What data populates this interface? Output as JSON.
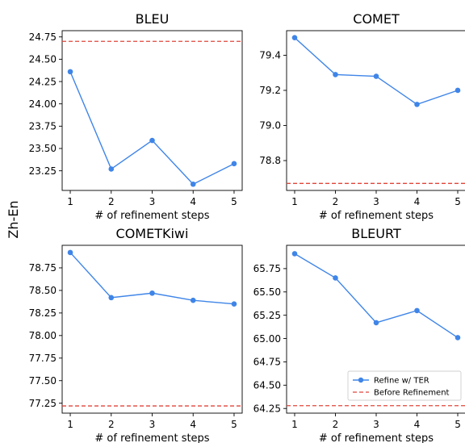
{
  "figure": {
    "row_label": "Zh-En"
  },
  "colors": {
    "series": "#3f85e8",
    "baseline": "#e0453a"
  },
  "legend": {
    "panel_index": 3,
    "placement": "lower-right",
    "entries": [
      "Refine w/ TER",
      "Before Refinement"
    ]
  },
  "chart_data": [
    {
      "type": "line",
      "title": "BLEU",
      "xlabel": "# of refinement steps",
      "x": [
        1,
        2,
        3,
        4,
        5
      ],
      "xticks": [
        "1",
        "2",
        "3",
        "4",
        "5"
      ],
      "series": [
        {
          "name": "Refine w/ TER",
          "values": [
            24.36,
            23.27,
            23.59,
            23.1,
            23.33
          ]
        }
      ],
      "baseline": {
        "name": "Before Refinement",
        "value": 24.7
      },
      "ylim": [
        23.03,
        24.82
      ],
      "yticks": [
        23.25,
        23.5,
        23.75,
        24.0,
        24.25,
        24.5,
        24.75
      ],
      "ytick_labels": [
        "23.25",
        "23.50",
        "23.75",
        "24.00",
        "24.25",
        "24.50",
        "24.75"
      ]
    },
    {
      "type": "line",
      "title": "COMET",
      "xlabel": "# of refinement steps",
      "x": [
        1,
        2,
        3,
        4,
        5
      ],
      "xticks": [
        "1",
        "2",
        "3",
        "4",
        "5"
      ],
      "series": [
        {
          "name": "Refine w/ TER",
          "values": [
            79.5,
            79.29,
            79.28,
            79.12,
            79.2
          ]
        }
      ],
      "baseline": {
        "name": "Before Refinement",
        "value": 78.67
      },
      "ylim": [
        78.63,
        79.54
      ],
      "yticks": [
        78.8,
        79.0,
        79.2,
        79.4
      ],
      "ytick_labels": [
        "78.8",
        "79.0",
        "79.2",
        "79.4"
      ]
    },
    {
      "type": "line",
      "title": "COMETKiwi",
      "xlabel": "# of refinement steps",
      "x": [
        1,
        2,
        3,
        4,
        5
      ],
      "xticks": [
        "1",
        "2",
        "3",
        "4",
        "5"
      ],
      "series": [
        {
          "name": "Refine w/ TER",
          "values": [
            78.92,
            78.42,
            78.47,
            78.39,
            78.35
          ]
        }
      ],
      "baseline": {
        "name": "Before Refinement",
        "value": 77.22
      },
      "ylim": [
        77.14,
        79.0
      ],
      "yticks": [
        77.25,
        77.5,
        77.75,
        78.0,
        78.25,
        78.5,
        78.75
      ],
      "ytick_labels": [
        "77.25",
        "77.50",
        "77.75",
        "78.00",
        "78.25",
        "78.50",
        "78.75"
      ]
    },
    {
      "type": "line",
      "title": "BLEURT",
      "xlabel": "# of refinement steps",
      "x": [
        1,
        2,
        3,
        4,
        5
      ],
      "xticks": [
        "1",
        "2",
        "3",
        "4",
        "5"
      ],
      "series": [
        {
          "name": "Refine w/ TER",
          "values": [
            65.91,
            65.65,
            65.17,
            65.3,
            65.01
          ]
        }
      ],
      "baseline": {
        "name": "Before Refinement",
        "value": 64.28
      },
      "ylim": [
        64.2,
        66.0
      ],
      "yticks": [
        64.25,
        64.5,
        64.75,
        65.0,
        65.25,
        65.5,
        65.75
      ],
      "ytick_labels": [
        "64.25",
        "64.50",
        "64.75",
        "65.00",
        "65.25",
        "65.50",
        "65.75"
      ]
    }
  ]
}
